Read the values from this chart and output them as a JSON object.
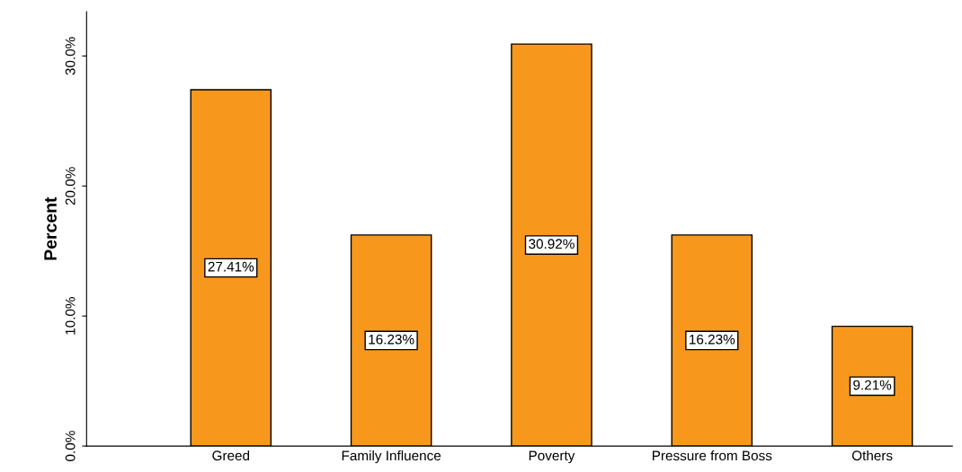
{
  "chart_data": {
    "type": "bar",
    "ylabel": "Percent",
    "categories": [
      "Greed",
      "Family Influence",
      "Poverty",
      "Pressure from Boss",
      "Others"
    ],
    "values": [
      27.41,
      16.23,
      30.92,
      16.23,
      9.21
    ],
    "value_labels": [
      "27.41%",
      "16.23%",
      "30.92%",
      "16.23%",
      "9.21%"
    ],
    "color": "#f7981d",
    "ylim": [
      0,
      33.4
    ],
    "yticks": [
      {
        "value": 0,
        "label": "0.0%"
      },
      {
        "value": 10,
        "label": "10.0%"
      },
      {
        "value": 20,
        "label": "20.0%"
      },
      {
        "value": 30,
        "label": "30.0%"
      }
    ],
    "grid": false,
    "legend": false
  }
}
